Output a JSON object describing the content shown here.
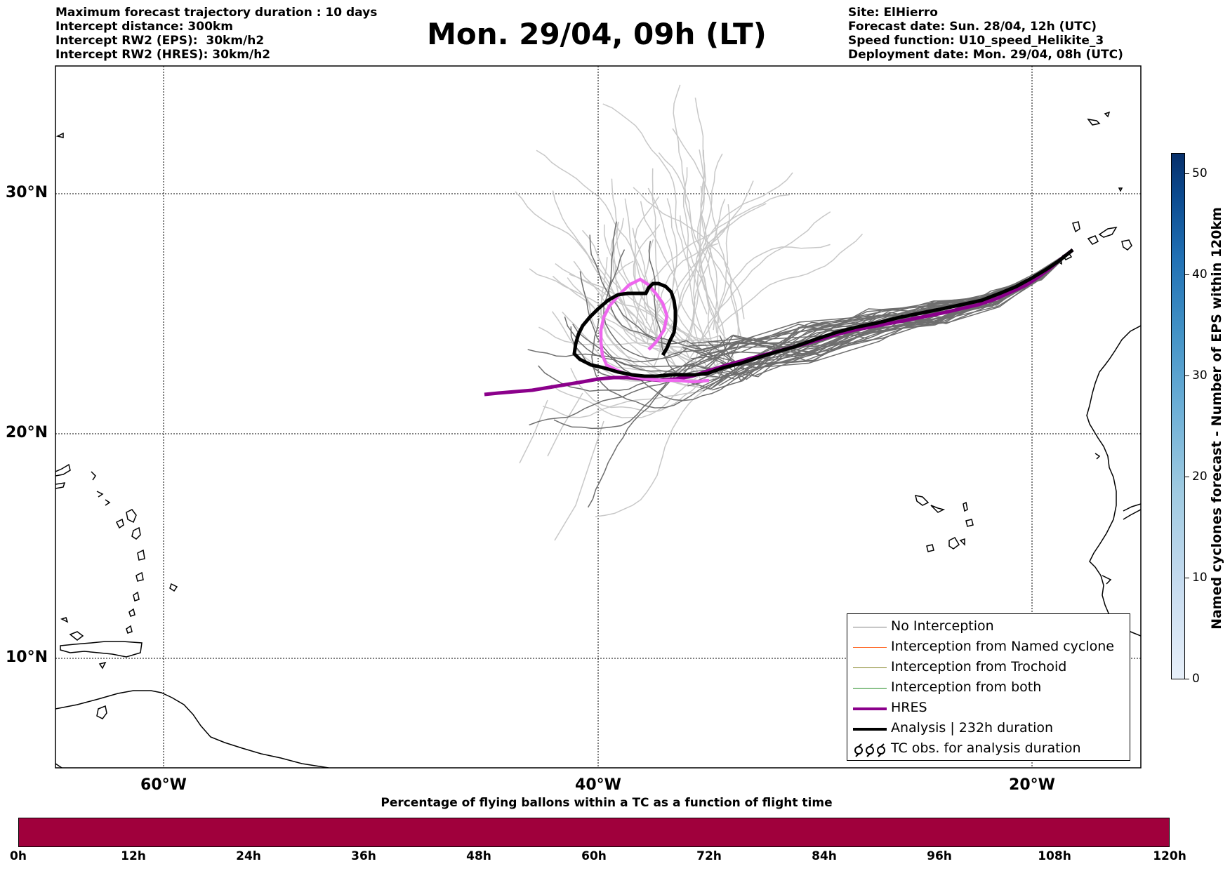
{
  "header": {
    "left_lines": [
      "Maximum forecast trajectory duration : 10 days",
      "Intercept distance: 300km",
      "Intercept RW2 (EPS):  30km/h2",
      "Intercept RW2 (HRES): 30km/h2"
    ],
    "title": "Mon. 29/04, 09h (LT)",
    "right_lines": [
      "Site: ElHierro",
      "Forecast date: Sun. 28/04, 12h (UTC)",
      "Speed function: U10_speed_Helikite_3",
      "Deployment date: Mon. 29/04, 08h (UTC)"
    ]
  },
  "map": {
    "lon_range": [
      -65,
      5
    ],
    "lat_range": [
      5.5,
      35
    ],
    "lat_labels": [
      "30°N",
      "20°N",
      "10°N"
    ],
    "lon_labels": [
      "60°W",
      "40°W",
      "20°W"
    ],
    "gridlines": true
  },
  "legend": {
    "items": [
      {
        "label": "No Interception",
        "color": "#808080"
      },
      {
        "label": "Interception from Named cyclone",
        "color": "#ff6a2a"
      },
      {
        "label": "Interception from Trochoid",
        "color": "#808020"
      },
      {
        "label": "Interception from both",
        "color": "#228b22"
      },
      {
        "label": "HRES",
        "color": "#8b008b"
      },
      {
        "label": "Analysis | 232h duration",
        "color": "#000000"
      },
      {
        "label": "TC obs. for analysis duration",
        "color": "#000000"
      }
    ]
  },
  "colorbar": {
    "title": "Named cyclones forecast - Number of EPS within 120km",
    "ticks": [
      "0",
      "10",
      "20",
      "30",
      "40",
      "50"
    ],
    "max": 52
  },
  "percentage_bar": {
    "title": "Percentage of flying ballons within a TC as a function of flight time",
    "ticks": [
      "0h",
      "12h",
      "24h",
      "36h",
      "48h",
      "60h",
      "72h",
      "84h",
      "96h",
      "108h",
      "120h"
    ],
    "color": "#a0003c"
  },
  "colors": {
    "hres": "#8b008b",
    "analysis": "#000000",
    "pink_track": "#ee66ee",
    "eps_light": "#c8c8c8",
    "eps_dark": "#6e6e6e"
  }
}
